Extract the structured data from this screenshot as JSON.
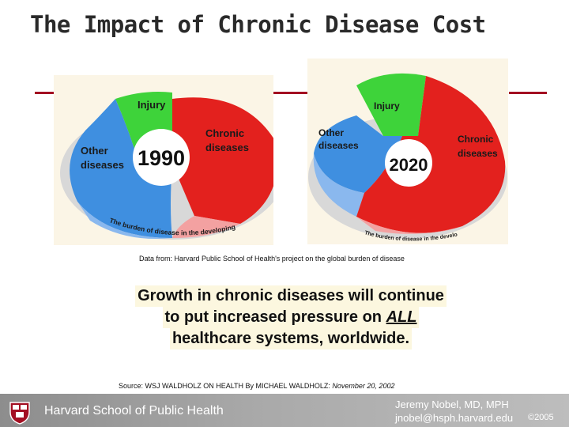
{
  "title": "The Impact of Chronic Disease Cost",
  "figures": [
    {
      "year": "1990",
      "labels": {
        "injury": "Injury",
        "other": [
          "Other",
          "diseases"
        ],
        "chronic": [
          "Chronic",
          "diseases"
        ]
      },
      "caption": "The burden of disease in the developing world"
    },
    {
      "year": "2020",
      "labels": {
        "injury": "Injury",
        "other": [
          "Other",
          "diseases"
        ],
        "chronic": [
          "Chronic",
          "diseases"
        ]
      },
      "caption": "The burden of disease in the developing world"
    }
  ],
  "data_from": "Data from:  Harvard Public School of Health's project on the global burden of disease",
  "message": {
    "line1": "Growth in chronic diseases will continue",
    "line2_prefix": "to put increased pressure on ",
    "line2_emphasis": "ALL",
    "line3": "healthcare systems, worldwide."
  },
  "source": {
    "prefix": "Source: ",
    "text": "WSJ WALDHOLZ ON HEALTH By MICHAEL WALDHOLZ: ",
    "date": "November 20, 2002"
  },
  "footer": {
    "school": "Harvard School of Public Health",
    "author": "Jeremy Nobel, MD, MPH",
    "email": "jnobel@hsph.harvard.edu",
    "copyright": "©2005"
  },
  "colors": {
    "accent": "#a30f22",
    "chronic": "#e3211e",
    "injury": "#3ed33a",
    "other": "#3f8fe0",
    "panel": "#fbf5e6"
  }
}
